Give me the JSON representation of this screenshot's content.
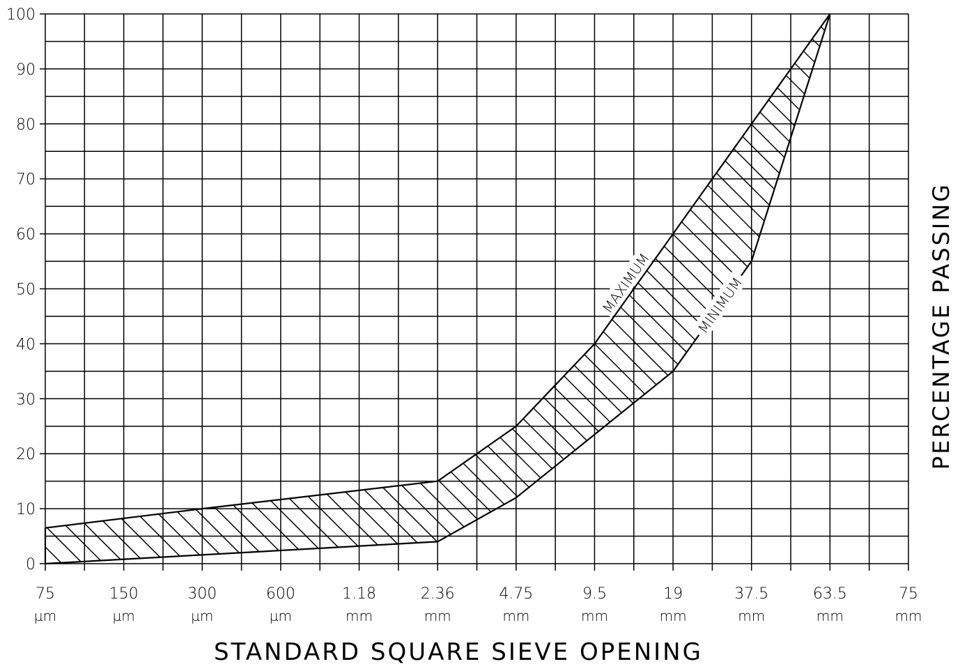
{
  "chart_data": {
    "type": "area",
    "xlabel": "STANDARD SQUARE SIEVE OPENING",
    "ylabel": "PERCENTAGE PASSING",
    "ylim": [
      0,
      100
    ],
    "y_ticks": [
      "0",
      "10",
      "20",
      "30",
      "40",
      "50",
      "60",
      "70",
      "80",
      "90",
      "100"
    ],
    "x_categories": [
      {
        "value": "75",
        "unit": "µm"
      },
      {
        "value": "150",
        "unit": "µm"
      },
      {
        "value": "300",
        "unit": "µm"
      },
      {
        "value": "600",
        "unit": "µm"
      },
      {
        "value": "1.18",
        "unit": "mm"
      },
      {
        "value": "2.36",
        "unit": "mm"
      },
      {
        "value": "4.75",
        "unit": "mm"
      },
      {
        "value": "9.5",
        "unit": "mm"
      },
      {
        "value": "19",
        "unit": "mm"
      },
      {
        "value": "37.5",
        "unit": "mm"
      },
      {
        "value": "63.5",
        "unit": "mm"
      },
      {
        "value": "75",
        "unit": "mm"
      }
    ],
    "grid": true,
    "fill_pattern": "diagonal-hatch",
    "series": [
      {
        "name": "MAXIMUM",
        "points": [
          {
            "sieve": "75 µm",
            "passing": 6.5
          },
          {
            "sieve": "300 µm",
            "passing": 10
          },
          {
            "sieve": "2.36 mm",
            "passing": 15
          },
          {
            "sieve": "4.75 mm",
            "passing": 25
          },
          {
            "sieve": "9.5 mm",
            "passing": 40
          },
          {
            "sieve": "19 mm",
            "passing": 60
          },
          {
            "sieve": "37.5 mm",
            "passing": 80
          },
          {
            "sieve": "63.5 mm",
            "passing": 100
          }
        ]
      },
      {
        "name": "MINIMUM",
        "points": [
          {
            "sieve": "75 µm",
            "passing": 0
          },
          {
            "sieve": "2.36 mm",
            "passing": 4
          },
          {
            "sieve": "4.75 mm",
            "passing": 12
          },
          {
            "sieve": "19 mm",
            "passing": 35
          },
          {
            "sieve": "37.5 mm",
            "passing": 55
          },
          {
            "sieve": "63.5 mm",
            "passing": 100
          }
        ]
      }
    ]
  },
  "colors": {
    "line": "#000000",
    "background": "#ffffff"
  }
}
